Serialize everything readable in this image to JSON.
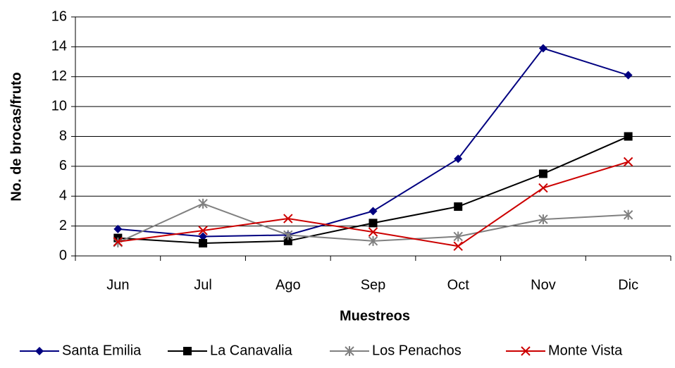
{
  "chart_data": {
    "type": "line",
    "x_label": "Muestreos",
    "y_label": "No. de brocas/fruto",
    "categories": [
      "Jun",
      "Jul",
      "Ago",
      "Sep",
      "Oct",
      "Nov",
      "Dic"
    ],
    "series": [
      {
        "name": "Santa Emilia",
        "color": "#000080",
        "marker": "diamond",
        "values": [
          1.8,
          1.3,
          1.4,
          3.0,
          6.5,
          13.9,
          12.1
        ]
      },
      {
        "name": "La Canavalia",
        "color": "#000000",
        "marker": "square",
        "values": [
          1.2,
          0.85,
          1.0,
          2.2,
          3.3,
          5.5,
          8.0
        ]
      },
      {
        "name": "Los Penachos",
        "color": "#808080",
        "marker": "asterisk",
        "values": [
          0.9,
          3.5,
          1.4,
          1.0,
          1.3,
          2.45,
          2.75
        ]
      },
      {
        "name": "Monte Vista",
        "color": "#cc0000",
        "marker": "x",
        "values": [
          0.95,
          1.7,
          2.5,
          1.6,
          0.65,
          4.55,
          6.3
        ]
      }
    ],
    "ylim": [
      0,
      16
    ],
    "yticks": [
      0,
      2,
      4,
      6,
      8,
      10,
      12,
      14,
      16
    ],
    "grid": true,
    "legend": "bottom"
  }
}
